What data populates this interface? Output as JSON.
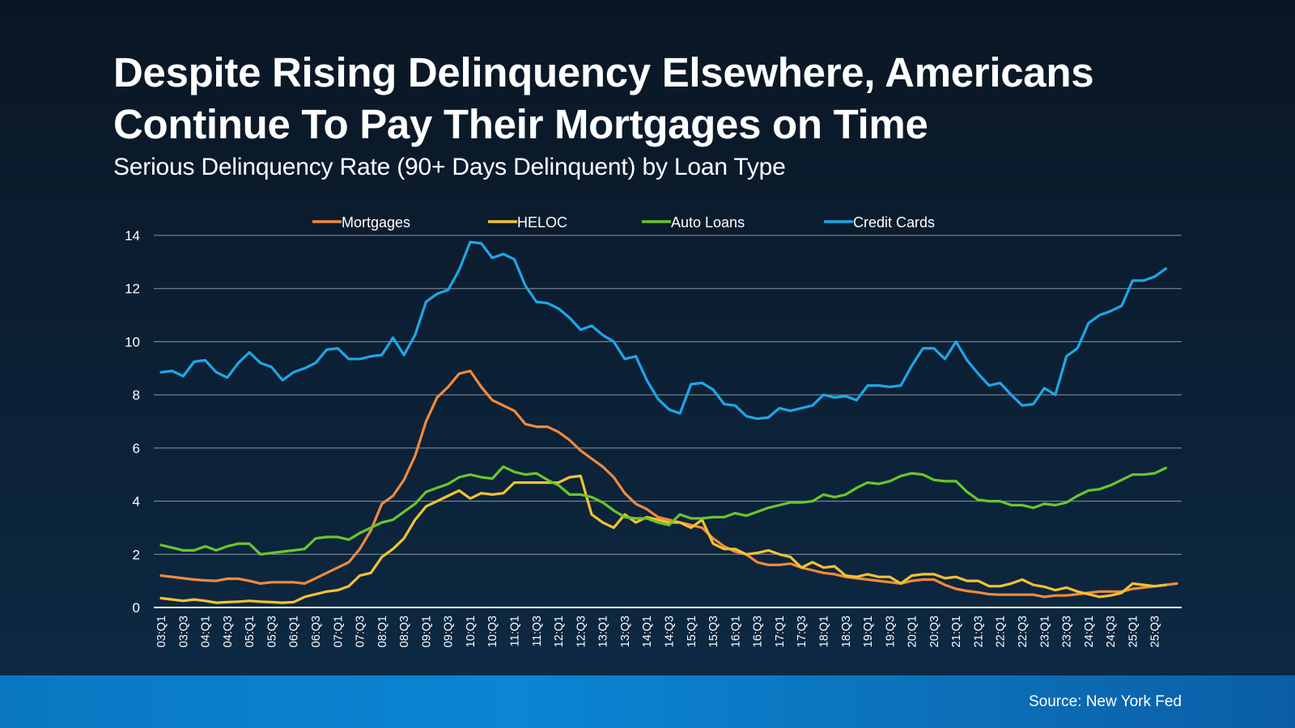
{
  "title": {
    "line1": "Despite Rising Delinquency Elsewhere, Americans",
    "line2": "Continue To Pay Their Mortgages on Time"
  },
  "subtitle": "Serious Delinquency Rate (90+ Days Delinquent) by Loan Type",
  "source": "Source: New York Fed",
  "chart_data": {
    "type": "line",
    "ylim": [
      0,
      14
    ],
    "yticks": [
      0,
      2,
      4,
      6,
      8,
      10,
      12,
      14
    ],
    "grid": true,
    "legend_position": "top",
    "x_tick_labels": [
      "03:Q1",
      "03:Q3",
      "04:Q1",
      "04:Q3",
      "05:Q1",
      "05:Q3",
      "06:Q1",
      "06:Q3",
      "07:Q1",
      "07:Q3",
      "08:Q1",
      "08:Q3",
      "09:Q1",
      "09:Q3",
      "10:Q1",
      "10:Q3",
      "11:Q1",
      "11:Q3",
      "12:Q1",
      "12:Q3",
      "13:Q1",
      "13:Q3",
      "14:Q1",
      "14:Q3",
      "15:Q1",
      "15:Q3",
      "16:Q1",
      "16:Q3",
      "17:Q1",
      "17:Q3",
      "18:Q1",
      "18:Q3",
      "19:Q1",
      "19:Q3",
      "20:Q1",
      "20:Q3",
      "21:Q1",
      "21:Q3",
      "22:Q1",
      "22:Q3",
      "23:Q1",
      "23:Q3",
      "24:Q1",
      "24:Q3",
      "25:Q1",
      "25:Q3"
    ],
    "series": [
      {
        "name": "Mortgages",
        "color": "#f08a3c",
        "values": [
          1.2,
          1.15,
          1.1,
          1.05,
          1.02,
          1.0,
          1.08,
          1.08,
          1.0,
          0.9,
          0.95,
          0.95,
          0.95,
          0.9,
          1.1,
          1.3,
          1.5,
          1.7,
          2.2,
          2.9,
          3.9,
          4.2,
          4.8,
          5.7,
          7.0,
          7.9,
          8.3,
          8.8,
          8.9,
          8.3,
          7.8,
          7.6,
          7.4,
          6.9,
          6.8,
          6.8,
          6.6,
          6.3,
          5.9,
          5.6,
          5.3,
          4.9,
          4.3,
          3.9,
          3.7,
          3.4,
          3.3,
          3.2,
          3.1,
          3.0,
          2.6,
          2.3,
          2.1,
          2.0,
          1.7,
          1.6,
          1.6,
          1.65,
          1.5,
          1.4,
          1.3,
          1.25,
          1.15,
          1.1,
          1.05,
          1.0,
          0.95,
          0.9,
          1.0,
          1.05,
          1.05,
          0.85,
          0.7,
          0.62,
          0.57,
          0.5,
          0.48,
          0.48,
          0.48,
          0.48,
          0.4,
          0.45,
          0.45,
          0.5,
          0.55,
          0.6,
          0.6,
          0.6,
          0.7,
          0.75,
          0.8,
          0.85,
          0.9
        ]
      },
      {
        "name": "HELOC",
        "color": "#f2c230",
        "values": [
          0.35,
          0.3,
          0.25,
          0.3,
          0.25,
          0.18,
          0.2,
          0.22,
          0.25,
          0.22,
          0.2,
          0.18,
          0.2,
          0.4,
          0.5,
          0.6,
          0.65,
          0.8,
          1.2,
          1.3,
          1.9,
          2.2,
          2.6,
          3.3,
          3.8,
          4.0,
          4.2,
          4.4,
          4.1,
          4.3,
          4.25,
          4.3,
          4.7,
          4.7,
          4.7,
          4.7,
          4.7,
          4.9,
          4.95,
          3.5,
          3.2,
          3.0,
          3.5,
          3.2,
          3.4,
          3.3,
          3.2,
          3.2,
          3.0,
          3.3,
          2.4,
          2.2,
          2.2,
          2.0,
          2.05,
          2.15,
          2.0,
          1.9,
          1.5,
          1.7,
          1.5,
          1.55,
          1.2,
          1.15,
          1.25,
          1.15,
          1.15,
          0.9,
          1.2,
          1.25,
          1.25,
          1.1,
          1.15,
          1.0,
          1.0,
          0.8,
          0.8,
          0.9,
          1.05,
          0.85,
          0.78,
          0.65,
          0.75,
          0.6,
          0.5,
          0.4,
          0.45,
          0.55,
          0.9,
          0.85,
          0.8,
          0.85
        ]
      },
      {
        "name": "Auto Loans",
        "color": "#6cc42c",
        "values": [
          2.35,
          2.25,
          2.15,
          2.15,
          2.3,
          2.15,
          2.3,
          2.4,
          2.4,
          2.0,
          2.05,
          2.1,
          2.15,
          2.2,
          2.6,
          2.65,
          2.65,
          2.55,
          2.8,
          3.0,
          3.2,
          3.3,
          3.6,
          3.9,
          4.35,
          4.5,
          4.65,
          4.9,
          5.0,
          4.9,
          4.85,
          5.3,
          5.1,
          5.0,
          5.05,
          4.8,
          4.6,
          4.25,
          4.25,
          4.15,
          3.95,
          3.65,
          3.4,
          3.35,
          3.35,
          3.2,
          3.1,
          3.5,
          3.35,
          3.35,
          3.4,
          3.4,
          3.55,
          3.45,
          3.6,
          3.75,
          3.85,
          3.95,
          3.95,
          4.0,
          4.25,
          4.15,
          4.25,
          4.5,
          4.7,
          4.65,
          4.75,
          4.95,
          5.05,
          5.0,
          4.8,
          4.75,
          4.75,
          4.35,
          4.05,
          4.0,
          4.0,
          3.85,
          3.85,
          3.75,
          3.9,
          3.85,
          3.95,
          4.2,
          4.4,
          4.45,
          4.6,
          4.8,
          5.0,
          5.0,
          5.05,
          5.25
        ]
      },
      {
        "name": "Credit Cards",
        "color": "#1ea6e8",
        "values": [
          8.85,
          8.9,
          8.7,
          9.25,
          9.3,
          8.85,
          8.65,
          9.2,
          9.6,
          9.2,
          9.05,
          8.55,
          8.85,
          9.0,
          9.2,
          9.7,
          9.75,
          9.35,
          9.35,
          9.45,
          9.5,
          10.15,
          9.5,
          10.25,
          11.5,
          11.8,
          11.95,
          12.7,
          13.75,
          13.7,
          13.15,
          13.3,
          13.1,
          12.1,
          11.5,
          11.45,
          11.25,
          10.9,
          10.45,
          10.6,
          10.25,
          10.0,
          9.35,
          9.45,
          8.55,
          7.85,
          7.45,
          7.3,
          8.4,
          8.45,
          8.2,
          7.65,
          7.6,
          7.2,
          7.1,
          7.15,
          7.5,
          7.4,
          7.5,
          7.6,
          8.0,
          7.9,
          7.95,
          7.8,
          8.35,
          8.35,
          8.3,
          8.35,
          9.1,
          9.75,
          9.75,
          9.35,
          10.0,
          9.3,
          8.8,
          8.35,
          8.45,
          8.0,
          7.6,
          7.65,
          8.25,
          8.0,
          9.45,
          9.75,
          10.7,
          11.0,
          11.15,
          11.35,
          12.3,
          12.3,
          12.45,
          12.75
        ]
      }
    ]
  }
}
